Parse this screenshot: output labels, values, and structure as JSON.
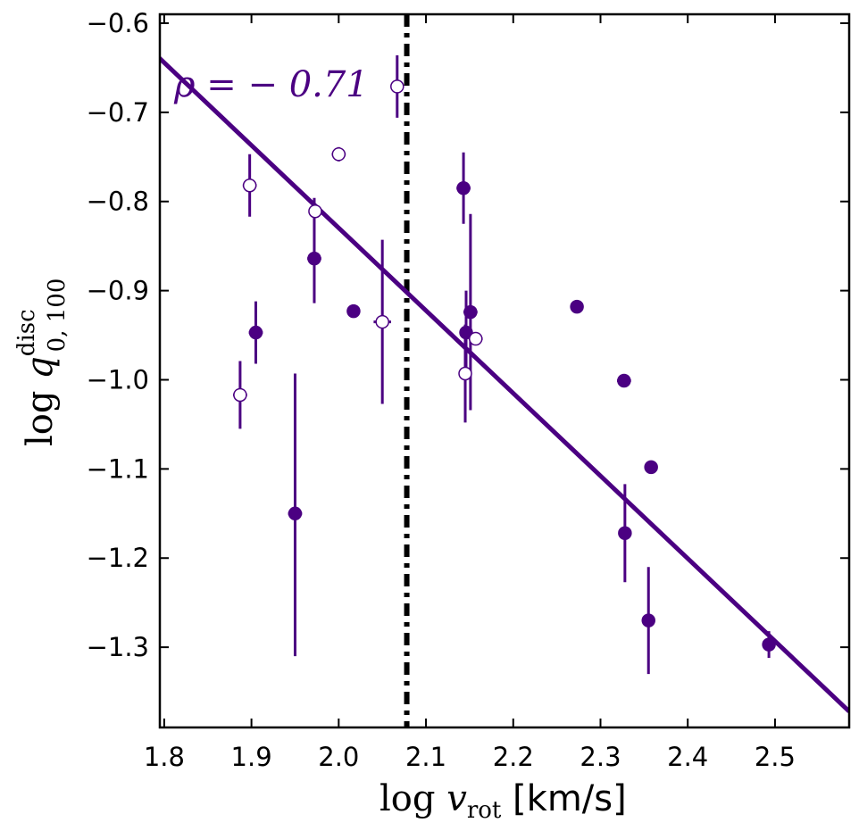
{
  "chart_data": {
    "type": "scatter",
    "title": "",
    "xlabel": {
      "main": "log ",
      "var": "v",
      "sub": "rot",
      "unit": " [km/s]"
    },
    "ylabel": {
      "main": "log ",
      "var": "q",
      "sub": "0, 100",
      "sup": "disc"
    },
    "xlim": [
      1.795,
      2.585
    ],
    "ylim": [
      -1.39,
      -0.59
    ],
    "xticks": [
      1.8,
      1.9,
      2.0,
      2.1,
      2.2,
      2.3,
      2.4,
      2.5
    ],
    "xtick_labels": [
      "1.8",
      "1.9",
      "2.0",
      "2.1",
      "2.2",
      "2.3",
      "2.4",
      "2.5"
    ],
    "yticks": [
      -0.6,
      -0.7,
      -0.8,
      -0.9,
      -1.0,
      -1.1,
      -1.2,
      -1.3
    ],
    "ytick_labels": [
      "−0.6",
      "−0.7",
      "−0.8",
      "−0.9",
      "−1.0",
      "−1.1",
      "−1.2",
      "−1.3"
    ],
    "annotation": "ρ = − 0.71",
    "vline_x": 2.078,
    "fit_line": {
      "x": [
        1.79,
        2.585
      ],
      "y": [
        -0.635,
        -1.372
      ]
    },
    "series": [
      {
        "name": "filled",
        "filled": true,
        "points": [
          {
            "x": 1.905,
            "y": -0.947,
            "yerr": [
              0.035,
              0.035
            ],
            "xerr": 0.008
          },
          {
            "x": 1.95,
            "y": -1.15,
            "yerr": [
              0.16,
              0.157
            ],
            "xerr": 0.008
          },
          {
            "x": 1.972,
            "y": -0.864,
            "yerr": [
              0.05,
              0.068
            ],
            "xerr": 0.008
          },
          {
            "x": 2.017,
            "y": -0.923,
            "yerr": [
              0.0,
              0.0
            ],
            "xerr": 0.0
          },
          {
            "x": 2.143,
            "y": -0.785,
            "yerr": [
              0.04,
              0.04
            ],
            "xerr": 0.008
          },
          {
            "x": 2.146,
            "y": -0.947,
            "yerr": [
              0.047,
              0.047
            ],
            "xerr": 0.005
          },
          {
            "x": 2.151,
            "y": -0.924,
            "yerr": [
              0.11,
              0.11
            ],
            "xerr": 0.008
          },
          {
            "x": 2.273,
            "y": -0.918,
            "yerr": [
              0.0,
              0.0
            ],
            "xerr": 0.007
          },
          {
            "x": 2.327,
            "y": -1.001,
            "yerr": [
              0.0,
              0.0
            ],
            "xerr": 0.008
          },
          {
            "x": 2.328,
            "y": -1.172,
            "yerr": [
              0.055,
              0.055
            ],
            "xerr": 0.0
          },
          {
            "x": 2.358,
            "y": -1.098,
            "yerr": [
              0.0,
              0.0
            ],
            "xerr": 0.0
          },
          {
            "x": 2.355,
            "y": -1.27,
            "yerr": [
              0.06,
              0.06
            ],
            "xerr": 0.0
          },
          {
            "x": 2.493,
            "y": -1.297,
            "yerr": [
              0.015,
              0.015
            ],
            "xerr": 0.0
          }
        ]
      },
      {
        "name": "open",
        "filled": false,
        "points": [
          {
            "x": 1.887,
            "y": -1.017,
            "yerr": [
              0.038,
              0.038
            ],
            "xerr": 0.008
          },
          {
            "x": 1.898,
            "y": -0.782,
            "yerr": [
              0.035,
              0.035
            ],
            "xerr": 0.008
          },
          {
            "x": 1.973,
            "y": -0.811,
            "yerr": [
              0.0,
              0.0
            ],
            "xerr": 0.005
          },
          {
            "x": 2.0,
            "y": -0.747,
            "yerr": [
              0.008,
              0.008
            ],
            "xerr": 0.008
          },
          {
            "x": 2.05,
            "y": -0.935,
            "yerr": [
              0.092,
              0.092
            ],
            "xerr": 0.01
          },
          {
            "x": 2.067,
            "y": -0.671,
            "yerr": [
              0.035,
              0.035
            ],
            "xerr": 0.0
          },
          {
            "x": 2.145,
            "y": -0.993,
            "yerr": [
              0.055,
              0.055
            ],
            "xerr": 0.005
          },
          {
            "x": 2.157,
            "y": -0.954,
            "yerr": [
              0.0,
              0.0
            ],
            "xerr": 0.008
          }
        ]
      }
    ]
  },
  "colors": {
    "series": "#4b0082",
    "axis": "#000000",
    "open_fill": "#ffffff",
    "vline": "#000000"
  }
}
